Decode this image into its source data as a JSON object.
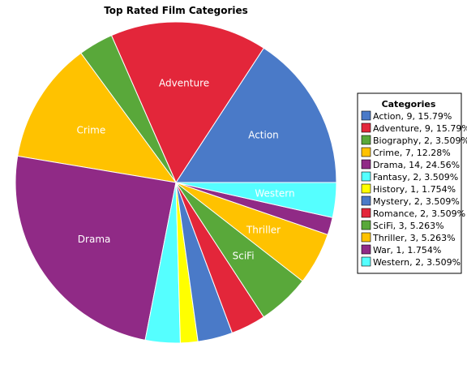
{
  "chart_data": {
    "type": "pie",
    "title": "Top Rated Film Categories",
    "legend": {
      "title": "Categories",
      "placement": "right"
    },
    "categories": [
      "Action",
      "Adventure",
      "Biography",
      "Crime",
      "Drama",
      "Fantasy",
      "History",
      "Mystery",
      "Romance",
      "SciFi",
      "Thriller",
      "War",
      "Western"
    ],
    "values": [
      9,
      9,
      2,
      7,
      14,
      2,
      1,
      2,
      2,
      3,
      3,
      1,
      2
    ],
    "colors": [
      "#4a7ac8",
      "#e3263a",
      "#59a83a",
      "#ffc200",
      "#902a86",
      "#55ffff",
      "#ffff00",
      "#4a7ac8",
      "#e3263a",
      "#59a83a",
      "#ffc200",
      "#902a86",
      "#55ffff"
    ],
    "legend_entries": [
      "Action, 9, 15.79%",
      "Adventure, 9, 15.79%",
      "Biography, 2, 3.509%",
      "Crime, 7, 12.28%",
      "Drama, 14, 24.56%",
      "Fantasy, 2, 3.509%",
      "History, 1, 1.754%",
      "Mystery, 2, 3.509%",
      "Romance, 2, 3.509%",
      "SciFi, 3, 5.263%",
      "Thriller, 3, 5.263%",
      "War, 1, 1.754%",
      "Western, 2, 3.509%"
    ],
    "slice_labels": [
      "Action",
      "Adventure",
      "",
      "Crime",
      "Drama",
      "",
      "",
      "",
      "",
      "SciFi",
      "Thriller",
      "",
      "Western"
    ]
  }
}
